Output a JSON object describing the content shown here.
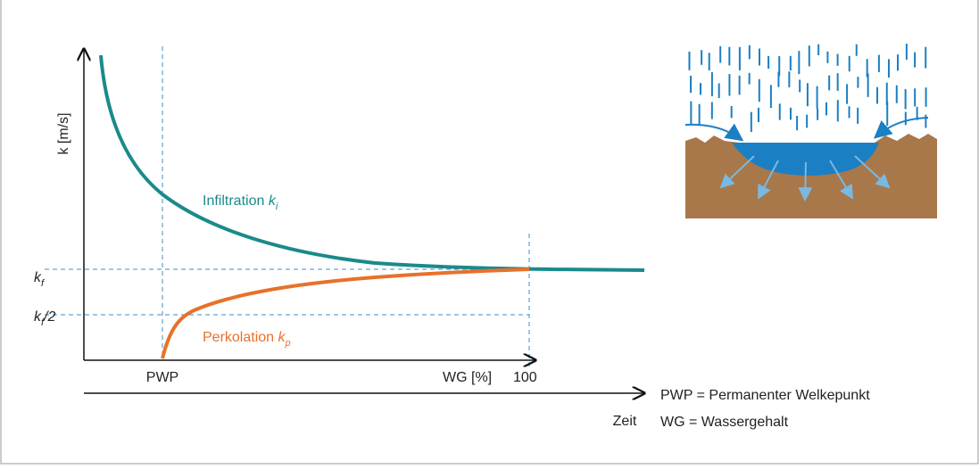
{
  "axes": {
    "y_label": "k [m/s]",
    "x_label": "WG [%]",
    "x_end": "100",
    "x_start": "PWP",
    "time_label": "Zeit"
  },
  "levels": {
    "kf": {
      "base": "k",
      "sub": "f"
    },
    "kf_half": {
      "base": "k",
      "sub": "f",
      "suffix": "/2"
    }
  },
  "curves": {
    "infiltration": {
      "text": "Infiltration",
      "symbol": "k",
      "sub": "i"
    },
    "perkolation": {
      "text": "Perkolation",
      "symbol": "k",
      "sub": "p"
    }
  },
  "legend": [
    "PWP = Permanenter Welkepunkt",
    "WG = Wassergehalt"
  ]
}
